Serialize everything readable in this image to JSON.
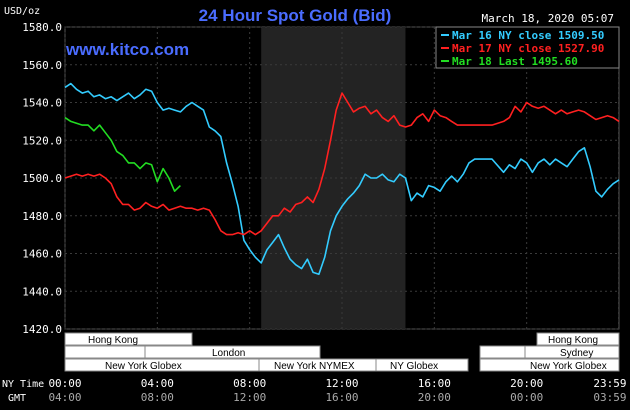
{
  "chart_data": {
    "type": "line",
    "title": "24 Hour Spot Gold (Bid)",
    "subtitle": "March 18, 2020 05:07",
    "watermark": "www.kitco.com",
    "ylabel": "USD/oz",
    "ylim": [
      1420,
      1580
    ],
    "xlim": [
      0,
      24
    ],
    "grid": true,
    "yticks": [
      1420,
      1440,
      1460,
      1480,
      1500,
      1520,
      1540,
      1560,
      1580
    ],
    "ytick_labels": [
      "1420.0",
      "1440.0",
      "1460.0",
      "1480.0",
      "1500.0",
      "1520.0",
      "1540.0",
      "1560.0",
      "1580.0"
    ],
    "x_ny_label": "NY Time",
    "x_gmt_label": "GMT",
    "x_ny_ticks": [
      "00:00",
      "04:00",
      "08:00",
      "12:00",
      "16:00",
      "20:00",
      "23:59"
    ],
    "x_gmt_ticks": [
      "04:00",
      "08:00",
      "12:00",
      "16:00",
      "20:00",
      "00:00",
      "03:59"
    ],
    "x_tick_hours": [
      0,
      4,
      8,
      12,
      16,
      20,
      23.98
    ],
    "shaded_region": [
      8.5,
      14.75
    ],
    "legend_position": "top-right",
    "series": [
      {
        "name": "Mar 16 NY close 1509.50",
        "color": "#33ccff",
        "points": [
          [
            0,
            1548
          ],
          [
            0.25,
            1550
          ],
          [
            0.5,
            1547
          ],
          [
            0.75,
            1545
          ],
          [
            1,
            1546
          ],
          [
            1.25,
            1543
          ],
          [
            1.5,
            1544
          ],
          [
            1.75,
            1542
          ],
          [
            2,
            1543
          ],
          [
            2.25,
            1541
          ],
          [
            2.5,
            1543
          ],
          [
            2.75,
            1545
          ],
          [
            3,
            1542
          ],
          [
            3.25,
            1544
          ],
          [
            3.5,
            1547
          ],
          [
            3.75,
            1546
          ],
          [
            4,
            1540
          ],
          [
            4.25,
            1536
          ],
          [
            4.5,
            1537
          ],
          [
            4.75,
            1536
          ],
          [
            5,
            1535
          ],
          [
            5.25,
            1538
          ],
          [
            5.5,
            1540
          ],
          [
            5.75,
            1538
          ],
          [
            6,
            1536
          ],
          [
            6.25,
            1527
          ],
          [
            6.5,
            1525
          ],
          [
            6.75,
            1522
          ],
          [
            7,
            1508
          ],
          [
            7.25,
            1497
          ],
          [
            7.5,
            1485
          ],
          [
            7.75,
            1467
          ],
          [
            8,
            1462
          ],
          [
            8.25,
            1458
          ],
          [
            8.5,
            1455
          ],
          [
            8.75,
            1462
          ],
          [
            9,
            1466
          ],
          [
            9.25,
            1470
          ],
          [
            9.5,
            1463
          ],
          [
            9.75,
            1457
          ],
          [
            10,
            1454
          ],
          [
            10.25,
            1452
          ],
          [
            10.5,
            1457
          ],
          [
            10.75,
            1450
          ],
          [
            11,
            1449
          ],
          [
            11.25,
            1458
          ],
          [
            11.5,
            1472
          ],
          [
            11.75,
            1480
          ],
          [
            12,
            1485
          ],
          [
            12.25,
            1489
          ],
          [
            12.5,
            1492
          ],
          [
            12.75,
            1496
          ],
          [
            13,
            1502
          ],
          [
            13.25,
            1500
          ],
          [
            13.5,
            1500
          ],
          [
            13.75,
            1502
          ],
          [
            14,
            1499
          ],
          [
            14.25,
            1498
          ],
          [
            14.5,
            1502
          ],
          [
            14.75,
            1500
          ],
          [
            15,
            1488
          ],
          [
            15.25,
            1492
          ],
          [
            15.5,
            1490
          ],
          [
            15.75,
            1496
          ],
          [
            16,
            1495
          ],
          [
            16.25,
            1493
          ],
          [
            16.5,
            1498
          ],
          [
            16.75,
            1501
          ],
          [
            17,
            1498
          ],
          [
            17.25,
            1502
          ],
          [
            17.5,
            1508
          ],
          [
            17.75,
            1510
          ],
          [
            18,
            1510
          ],
          [
            18.5,
            1510
          ],
          [
            19,
            1503
          ],
          [
            19.25,
            1507
          ],
          [
            19.5,
            1505
          ],
          [
            19.75,
            1510
          ],
          [
            20,
            1508
          ],
          [
            20.25,
            1503
          ],
          [
            20.5,
            1508
          ],
          [
            20.75,
            1510
          ],
          [
            21,
            1507
          ],
          [
            21.25,
            1510
          ],
          [
            21.5,
            1508
          ],
          [
            21.75,
            1506
          ],
          [
            22,
            1510
          ],
          [
            22.25,
            1514
          ],
          [
            22.5,
            1516
          ],
          [
            22.75,
            1506
          ],
          [
            23,
            1493
          ],
          [
            23.25,
            1490
          ],
          [
            23.5,
            1494
          ],
          [
            23.75,
            1497
          ],
          [
            24,
            1499
          ]
        ]
      },
      {
        "name": "Mar 17 NY close 1527.90",
        "color": "#ff2020",
        "points": [
          [
            0,
            1500
          ],
          [
            0.25,
            1501
          ],
          [
            0.5,
            1502
          ],
          [
            0.75,
            1501
          ],
          [
            1,
            1502
          ],
          [
            1.25,
            1501
          ],
          [
            1.5,
            1502
          ],
          [
            1.75,
            1500
          ],
          [
            2,
            1497
          ],
          [
            2.25,
            1490
          ],
          [
            2.5,
            1486
          ],
          [
            2.75,
            1486
          ],
          [
            3,
            1483
          ],
          [
            3.25,
            1484
          ],
          [
            3.5,
            1487
          ],
          [
            3.75,
            1485
          ],
          [
            4,
            1484
          ],
          [
            4.25,
            1486
          ],
          [
            4.5,
            1483
          ],
          [
            4.75,
            1484
          ],
          [
            5,
            1485
          ],
          [
            5.25,
            1484
          ],
          [
            5.5,
            1484
          ],
          [
            5.75,
            1483
          ],
          [
            6,
            1484
          ],
          [
            6.25,
            1483
          ],
          [
            6.5,
            1478
          ],
          [
            6.75,
            1472
          ],
          [
            7,
            1470
          ],
          [
            7.25,
            1470
          ],
          [
            7.5,
            1471
          ],
          [
            7.75,
            1470
          ],
          [
            8,
            1472
          ],
          [
            8.25,
            1470
          ],
          [
            8.5,
            1472
          ],
          [
            8.75,
            1476
          ],
          [
            9,
            1480
          ],
          [
            9.25,
            1480
          ],
          [
            9.5,
            1484
          ],
          [
            9.75,
            1482
          ],
          [
            10,
            1486
          ],
          [
            10.25,
            1487
          ],
          [
            10.5,
            1490
          ],
          [
            10.75,
            1487
          ],
          [
            11,
            1494
          ],
          [
            11.25,
            1505
          ],
          [
            11.5,
            1520
          ],
          [
            11.75,
            1536
          ],
          [
            12,
            1545
          ],
          [
            12.25,
            1540
          ],
          [
            12.5,
            1535
          ],
          [
            12.75,
            1537
          ],
          [
            13,
            1538
          ],
          [
            13.25,
            1534
          ],
          [
            13.5,
            1536
          ],
          [
            13.75,
            1532
          ],
          [
            14,
            1530
          ],
          [
            14.25,
            1533
          ],
          [
            14.5,
            1528
          ],
          [
            14.75,
            1527
          ],
          [
            15,
            1528
          ],
          [
            15.25,
            1532
          ],
          [
            15.5,
            1534
          ],
          [
            15.75,
            1530
          ],
          [
            16,
            1536
          ],
          [
            16.25,
            1533
          ],
          [
            16.5,
            1532
          ],
          [
            16.75,
            1530
          ],
          [
            17,
            1528
          ],
          [
            17.5,
            1528
          ],
          [
            18,
            1528
          ],
          [
            18.5,
            1528
          ],
          [
            19,
            1530
          ],
          [
            19.25,
            1532
          ],
          [
            19.5,
            1538
          ],
          [
            19.75,
            1535
          ],
          [
            20,
            1540
          ],
          [
            20.25,
            1538
          ],
          [
            20.5,
            1537
          ],
          [
            20.75,
            1538
          ],
          [
            21,
            1536
          ],
          [
            21.25,
            1534
          ],
          [
            21.5,
            1536
          ],
          [
            21.75,
            1534
          ],
          [
            22,
            1535
          ],
          [
            22.25,
            1536
          ],
          [
            22.5,
            1535
          ],
          [
            22.75,
            1533
          ],
          [
            23,
            1531
          ],
          [
            23.25,
            1532
          ],
          [
            23.5,
            1533
          ],
          [
            23.75,
            1532
          ],
          [
            24,
            1530
          ]
        ]
      },
      {
        "name": "Mar 18 Last 1495.60",
        "color": "#22dd22",
        "points": [
          [
            0,
            1532
          ],
          [
            0.25,
            1530
          ],
          [
            0.5,
            1529
          ],
          [
            0.75,
            1528
          ],
          [
            1,
            1528
          ],
          [
            1.25,
            1525
          ],
          [
            1.5,
            1528
          ],
          [
            1.75,
            1524
          ],
          [
            2,
            1520
          ],
          [
            2.25,
            1514
          ],
          [
            2.5,
            1512
          ],
          [
            2.75,
            1508
          ],
          [
            3,
            1508
          ],
          [
            3.25,
            1505
          ],
          [
            3.5,
            1508
          ],
          [
            3.75,
            1507
          ],
          [
            4,
            1498
          ],
          [
            4.25,
            1505
          ],
          [
            4.5,
            1500
          ],
          [
            4.75,
            1493
          ],
          [
            5,
            1496
          ]
        ]
      }
    ]
  },
  "sessions": {
    "hong_kong_1": "Hong Kong",
    "london": "London",
    "new_york_globex_1": "New York Globex",
    "new_york_nymex": "New York NYMEX",
    "ny_globex": "NY Globex",
    "hong_kong_2": "Hong Kong",
    "sydney": "Sydney",
    "new_york_globex_2": "New York Globex"
  }
}
